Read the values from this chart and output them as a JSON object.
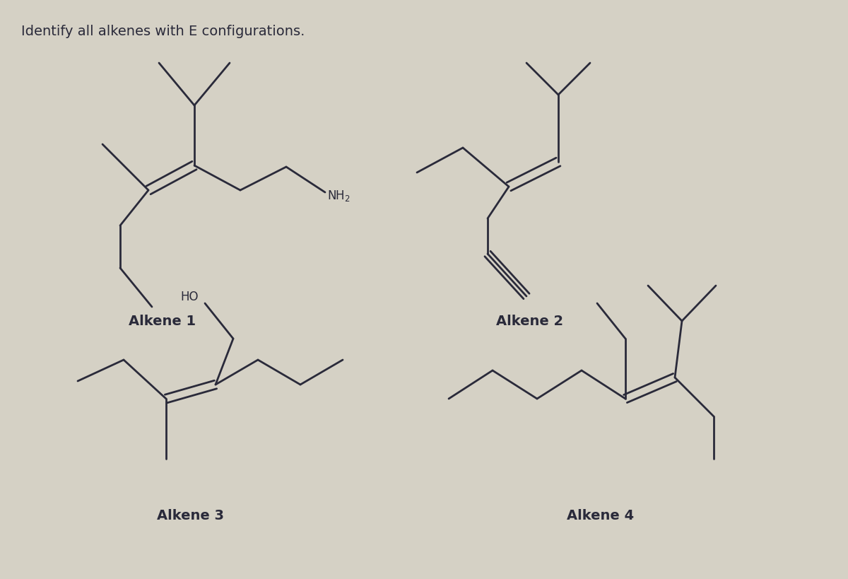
{
  "title": "Identify all alkenes with E configurations.",
  "background_color": "#d5d1c5",
  "line_color": "#2a2a3a",
  "line_width": 2.0,
  "label_fontsize": 14,
  "title_fontsize": 14,
  "alkene_labels": [
    "Alkene 1",
    "Alkene 2",
    "Alkene 3",
    "Alkene 4"
  ],
  "NH2_text": "NH₂",
  "HO_text": "HO"
}
